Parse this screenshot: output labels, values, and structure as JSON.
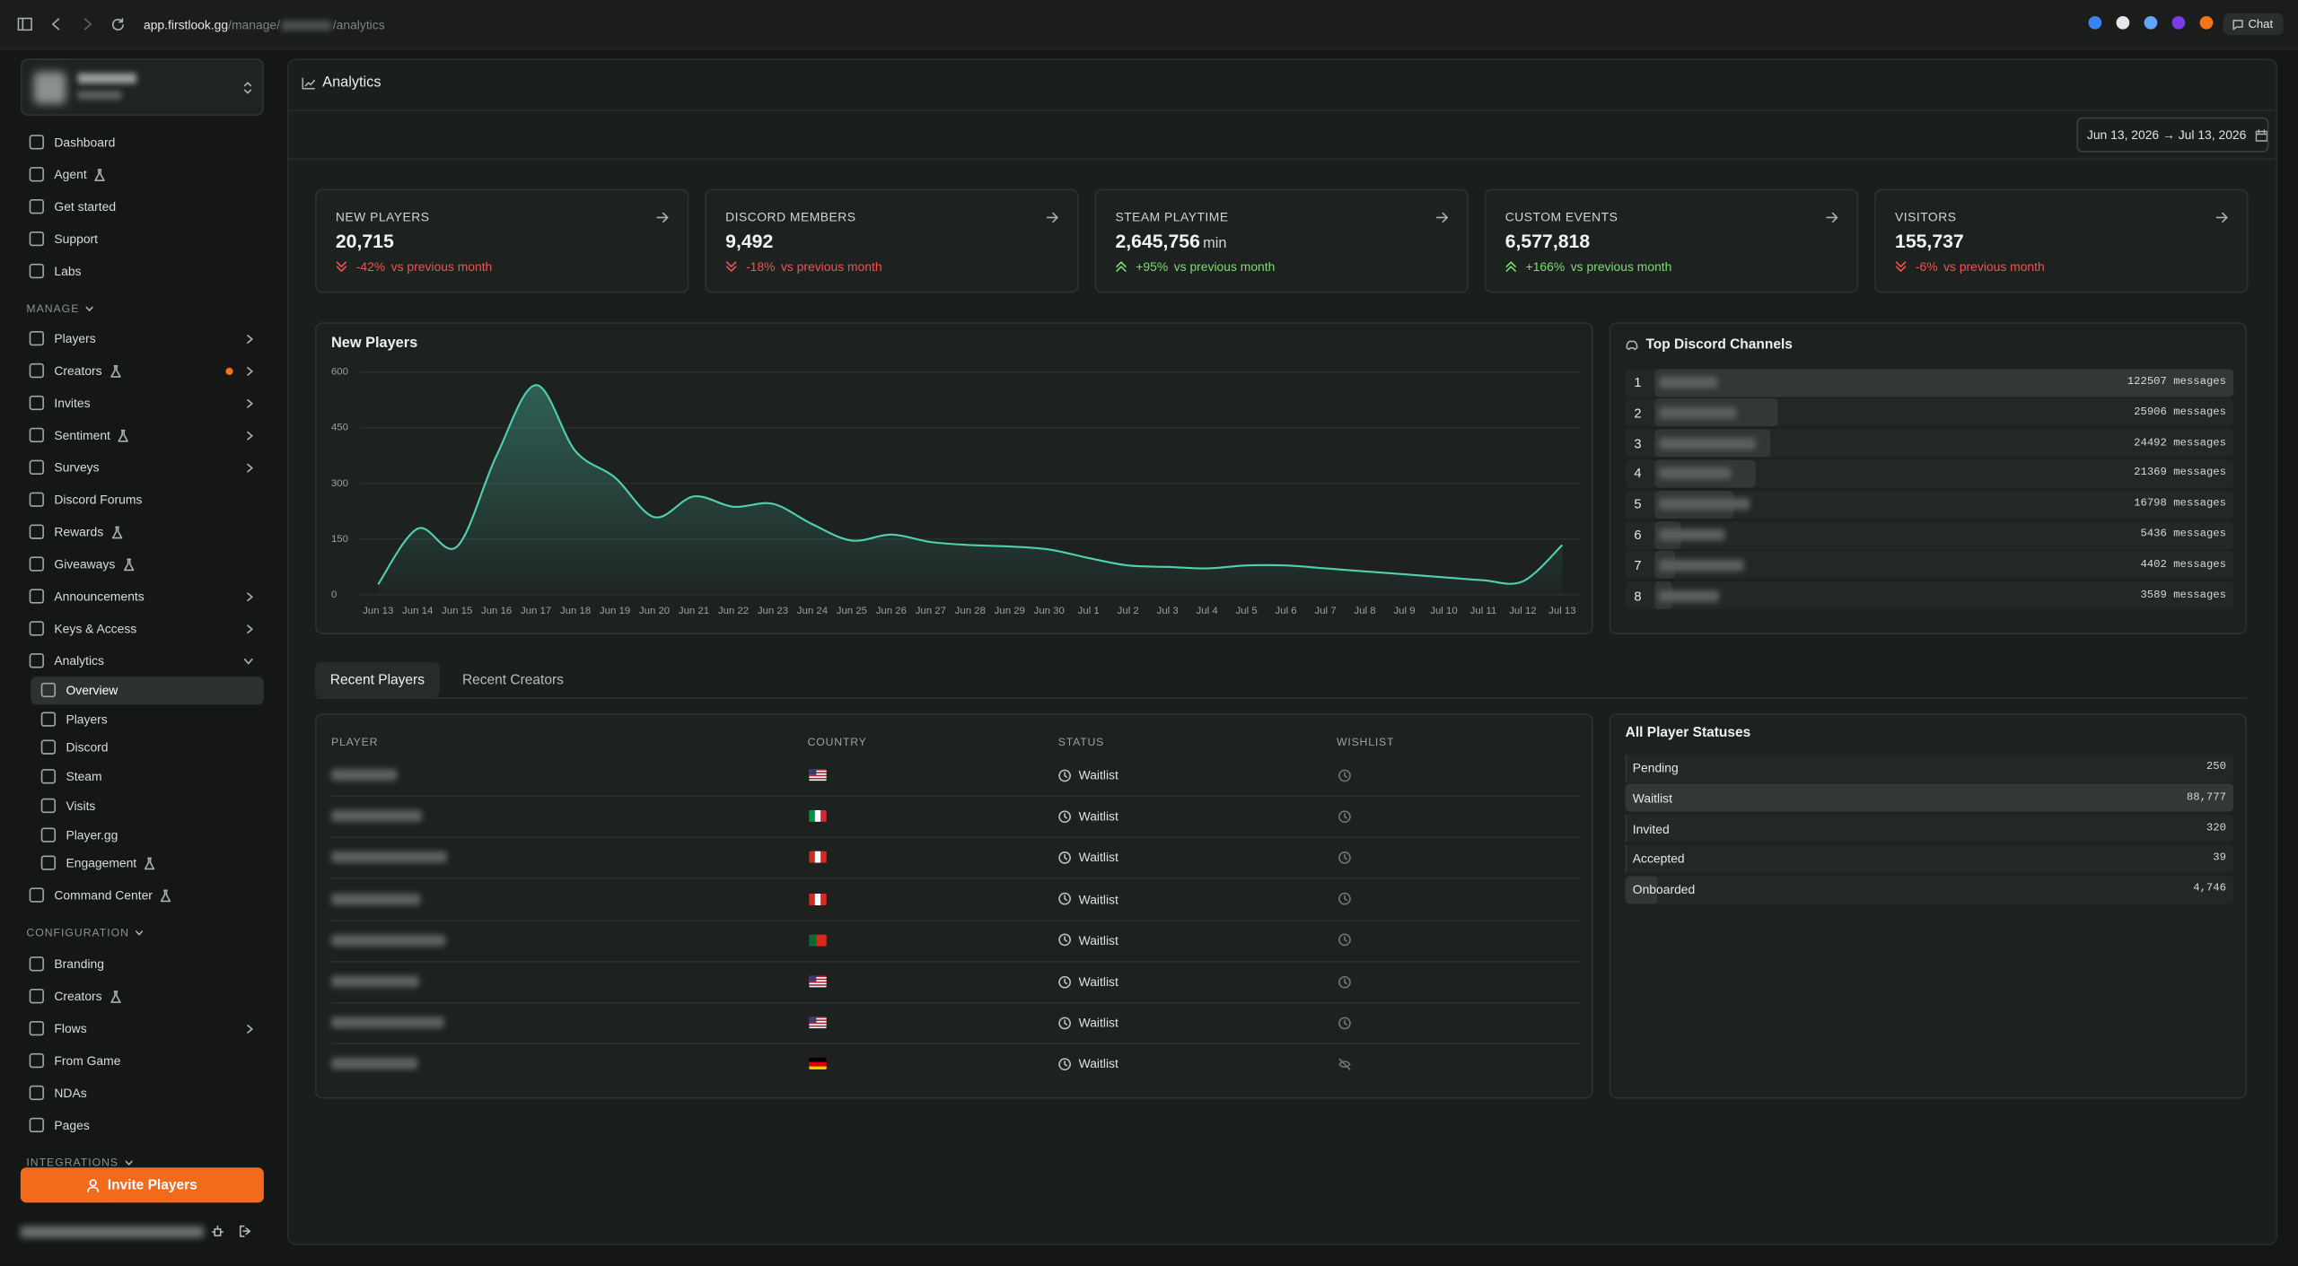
{
  "browser": {
    "url_host": "app.firstlook.gg",
    "url_path": "/manage/",
    "url_tail": "/analytics",
    "chat": "Chat"
  },
  "sidebar": {
    "top": [
      {
        "label": "Dashboard"
      },
      {
        "label": "Agent",
        "beta": true
      },
      {
        "label": "Get started"
      },
      {
        "label": "Support"
      },
      {
        "label": "Labs"
      }
    ],
    "manage": {
      "heading": "MANAGE",
      "items": [
        {
          "label": "Players",
          "chevron": true
        },
        {
          "label": "Creators",
          "beta": true,
          "dot": true,
          "chevron": true
        },
        {
          "label": "Invites",
          "chevron": true
        },
        {
          "label": "Sentiment",
          "beta": true,
          "chevron": true
        },
        {
          "label": "Surveys",
          "chevron": true
        },
        {
          "label": "Discord Forums"
        },
        {
          "label": "Rewards",
          "beta": true
        },
        {
          "label": "Giveaways",
          "beta": true
        },
        {
          "label": "Announcements",
          "chevron": true
        },
        {
          "label": "Keys & Access",
          "chevron": true
        },
        {
          "label": "Analytics",
          "expanded": true,
          "children": [
            {
              "label": "Overview",
              "active": true
            },
            {
              "label": "Players"
            },
            {
              "label": "Discord"
            },
            {
              "label": "Steam"
            },
            {
              "label": "Visits"
            },
            {
              "label": "Player.gg"
            },
            {
              "label": "Engagement",
              "beta": true
            }
          ]
        },
        {
          "label": "Command Center",
          "beta": true
        }
      ]
    },
    "configuration": {
      "heading": "CONFIGURATION",
      "items": [
        {
          "label": "Branding"
        },
        {
          "label": "Creators",
          "beta": true
        },
        {
          "label": "Flows",
          "chevron": true
        },
        {
          "label": "From Game"
        },
        {
          "label": "NDAs"
        },
        {
          "label": "Pages"
        }
      ]
    },
    "integrations": {
      "heading": "INTEGRATIONS"
    },
    "invite_button": "Invite Players"
  },
  "header": {
    "title": "Analytics",
    "date_range": "Jun 13, 2026 → Jul 13, 2026"
  },
  "stats": [
    {
      "label": "NEW PLAYERS",
      "value": "20,715",
      "change": "-42%",
      "comparison": "vs previous month",
      "trend": "down"
    },
    {
      "label": "DISCORD MEMBERS",
      "value": "9,492",
      "change": "-18%",
      "comparison": "vs previous month",
      "trend": "down"
    },
    {
      "label": "STEAM PLAYTIME",
      "value": "2,645,756",
      "unit": "min",
      "change": "+95%",
      "comparison": "vs previous month",
      "trend": "up"
    },
    {
      "label": "CUSTOM EVENTS",
      "value": "6,577,818",
      "change": "+166%",
      "comparison": "vs previous month",
      "trend": "up"
    },
    {
      "label": "VISITORS",
      "value": "155,737",
      "change": "-6%",
      "comparison": "vs previous month",
      "trend": "down"
    }
  ],
  "chart_data": {
    "type": "line",
    "title": "New Players",
    "x": [
      "Jun 13",
      "Jun 14",
      "Jun 15",
      "Jun 16",
      "Jun 17",
      "Jun 18",
      "Jun 19",
      "Jun 20",
      "Jun 21",
      "Jun 22",
      "Jun 23",
      "Jun 24",
      "Jun 25",
      "Jun 26",
      "Jun 27",
      "Jun 28",
      "Jun 29",
      "Jun 30",
      "Jul 1",
      "Jul 2",
      "Jul 3",
      "Jul 4",
      "Jul 5",
      "Jul 6",
      "Jul 7",
      "Jul 8",
      "Jul 9",
      "Jul 10",
      "Jul 11",
      "Jul 12",
      "Jul 13"
    ],
    "values": [
      28,
      178,
      130,
      375,
      565,
      387,
      316,
      209,
      265,
      237,
      245,
      190,
      146,
      162,
      142,
      134,
      130,
      122,
      99,
      79,
      75,
      71,
      79,
      79,
      71,
      63,
      55,
      47,
      39,
      36,
      134
    ],
    "color": "#4fd1b0",
    "ylim": [
      0,
      600
    ],
    "yticks": [
      0,
      150,
      300,
      450,
      600
    ],
    "grid": true
  },
  "top_channels": {
    "title": "Top Discord Channels",
    "ranks": [
      1,
      2,
      3,
      4,
      5,
      6,
      7,
      8
    ],
    "values": [
      122507,
      25906,
      24492,
      21369,
      16798,
      5436,
      4402,
      3589
    ],
    "value_labels": [
      "122507 messages",
      "25906 messages",
      "24492 messages",
      "21369 messages",
      "16798 messages",
      "5436 messages",
      "4402 messages",
      "3589 messages"
    ]
  },
  "tabs": [
    "Recent Players",
    "Recent Creators"
  ],
  "players_table": {
    "headers": [
      "PLAYER",
      "COUNTRY",
      "STATUS",
      "WISHLIST"
    ],
    "statuses": [
      "Waitlist",
      "Waitlist",
      "Waitlist",
      "Waitlist",
      "Waitlist",
      "Waitlist",
      "Waitlist",
      "Waitlist"
    ]
  },
  "player_statuses": {
    "title": "All Player Statuses",
    "names": [
      "Pending",
      "Waitlist",
      "Invited",
      "Accepted",
      "Onboarded"
    ],
    "values": [
      250,
      88777,
      320,
      39,
      4746
    ],
    "value_labels": [
      "250",
      "88,777",
      "320",
      "39",
      "4,746"
    ]
  }
}
